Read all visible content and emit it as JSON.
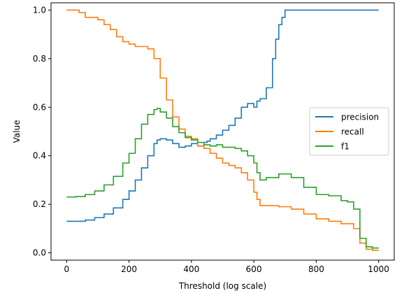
{
  "chart_data": {
    "type": "line",
    "title": "",
    "xlabel": "Threshold (log scale)",
    "ylabel": "Value",
    "xlim": [
      -50,
      1050
    ],
    "ylim": [
      -0.03,
      1.03
    ],
    "xticks": [
      0,
      200,
      400,
      600,
      800,
      1000
    ],
    "yticks": [
      0.0,
      0.2,
      0.4,
      0.6,
      0.8,
      1.0
    ],
    "xtick_labels": [
      "0",
      "200",
      "400",
      "600",
      "800",
      "1000"
    ],
    "ytick_labels": [
      "0.0",
      "0.2",
      "0.4",
      "0.6",
      "0.8",
      "1.0"
    ],
    "grid": false,
    "legend_position": "center-right",
    "series": [
      {
        "name": "precision",
        "color": "#1f77b4",
        "x": [
          0,
          30,
          60,
          90,
          120,
          150,
          180,
          200,
          220,
          240,
          260,
          280,
          290,
          300,
          320,
          340,
          360,
          380,
          400,
          420,
          430,
          440,
          450,
          460,
          480,
          500,
          520,
          540,
          560,
          580,
          600,
          610,
          620,
          640,
          660,
          670,
          680,
          690,
          700,
          720,
          760,
          800,
          850,
          900,
          950,
          1000
        ],
        "y": [
          0.13,
          0.13,
          0.135,
          0.145,
          0.16,
          0.185,
          0.22,
          0.255,
          0.3,
          0.35,
          0.4,
          0.45,
          0.465,
          0.47,
          0.465,
          0.45,
          0.435,
          0.44,
          0.45,
          0.44,
          0.44,
          0.455,
          0.46,
          0.47,
          0.485,
          0.505,
          0.525,
          0.555,
          0.6,
          0.615,
          0.6,
          0.625,
          0.635,
          0.68,
          0.8,
          0.88,
          0.94,
          0.97,
          1.0,
          1.0,
          1.0,
          1.0,
          1.0,
          1.0,
          1.0,
          1.0
        ]
      },
      {
        "name": "recall",
        "color": "#ff7f0e",
        "x": [
          0,
          20,
          40,
          60,
          80,
          100,
          120,
          140,
          160,
          180,
          200,
          220,
          240,
          260,
          280,
          300,
          320,
          340,
          360,
          380,
          400,
          420,
          440,
          460,
          480,
          500,
          520,
          540,
          560,
          580,
          600,
          610,
          620,
          640,
          680,
          720,
          760,
          800,
          840,
          880,
          900,
          920,
          940,
          960,
          980,
          1000
        ],
        "y": [
          1.0,
          1.0,
          0.99,
          0.97,
          0.97,
          0.96,
          0.94,
          0.92,
          0.89,
          0.87,
          0.86,
          0.85,
          0.85,
          0.84,
          0.8,
          0.72,
          0.63,
          0.56,
          0.51,
          0.48,
          0.47,
          0.44,
          0.43,
          0.41,
          0.39,
          0.37,
          0.36,
          0.35,
          0.33,
          0.3,
          0.25,
          0.22,
          0.195,
          0.195,
          0.19,
          0.18,
          0.16,
          0.14,
          0.13,
          0.12,
          0.12,
          0.1,
          0.04,
          0.015,
          0.01,
          0.01
        ]
      },
      {
        "name": "f1",
        "color": "#2ca02c",
        "x": [
          0,
          30,
          60,
          90,
          120,
          150,
          180,
          200,
          220,
          240,
          260,
          280,
          290,
          300,
          320,
          340,
          360,
          380,
          400,
          420,
          440,
          460,
          480,
          500,
          520,
          540,
          560,
          580,
          600,
          610,
          620,
          640,
          680,
          720,
          760,
          800,
          840,
          880,
          900,
          920,
          940,
          960,
          980,
          1000
        ],
        "y": [
          0.23,
          0.232,
          0.24,
          0.255,
          0.28,
          0.315,
          0.37,
          0.41,
          0.47,
          0.53,
          0.57,
          0.59,
          0.595,
          0.58,
          0.555,
          0.52,
          0.495,
          0.475,
          0.465,
          0.455,
          0.445,
          0.44,
          0.445,
          0.435,
          0.435,
          0.43,
          0.42,
          0.4,
          0.37,
          0.33,
          0.3,
          0.31,
          0.325,
          0.31,
          0.27,
          0.24,
          0.235,
          0.215,
          0.21,
          0.18,
          0.06,
          0.025,
          0.02,
          0.02
        ]
      }
    ]
  }
}
